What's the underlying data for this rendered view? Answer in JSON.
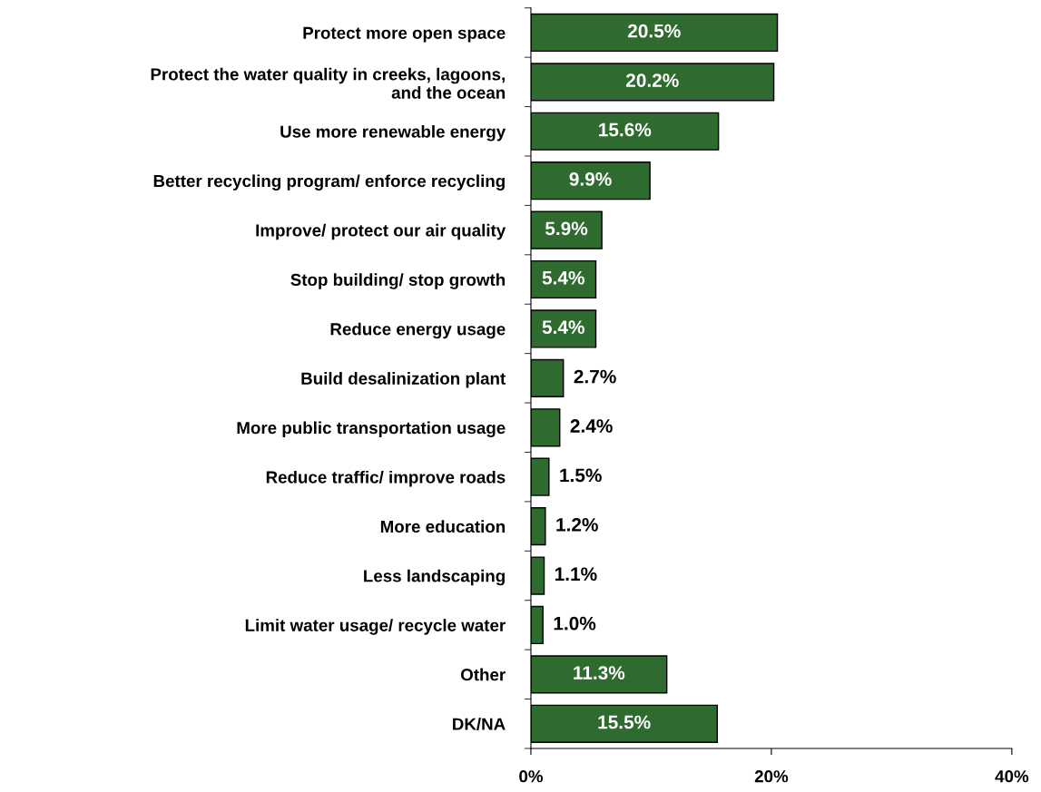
{
  "chart_data": {
    "type": "bar",
    "orientation": "horizontal",
    "categories": [
      "Protect more open space",
      "Protect the water quality in creeks, lagoons,\nand the ocean",
      "Use more renewable energy",
      "Better recycling program/ enforce recycling",
      "Improve/ protect our air quality",
      "Stop building/ stop growth",
      "Reduce energy usage",
      "Build desalinization plant",
      "More public transportation usage",
      "Reduce traffic/ improve roads",
      "More education",
      "Less landscaping",
      "Limit water usage/ recycle water",
      "Other",
      "DK/NA"
    ],
    "values": [
      20.5,
      20.2,
      15.6,
      9.9,
      5.9,
      5.4,
      5.4,
      2.7,
      2.4,
      1.5,
      1.2,
      1.1,
      1.0,
      11.3,
      15.5
    ],
    "value_labels": [
      "20.5%",
      "20.2%",
      "15.6%",
      "9.9%",
      "5.9%",
      "5.4%",
      "5.4%",
      "2.7%",
      "2.4%",
      "1.5%",
      "1.2%",
      "1.1%",
      "1.0%",
      "11.3%",
      "15.5%"
    ],
    "color": "#2f6b2f",
    "xlim": [
      0,
      40
    ],
    "xticks": [
      {
        "value": 0,
        "label": "0%"
      },
      {
        "value": 20,
        "label": "20%"
      },
      {
        "value": 40,
        "label": "40%"
      }
    ]
  }
}
